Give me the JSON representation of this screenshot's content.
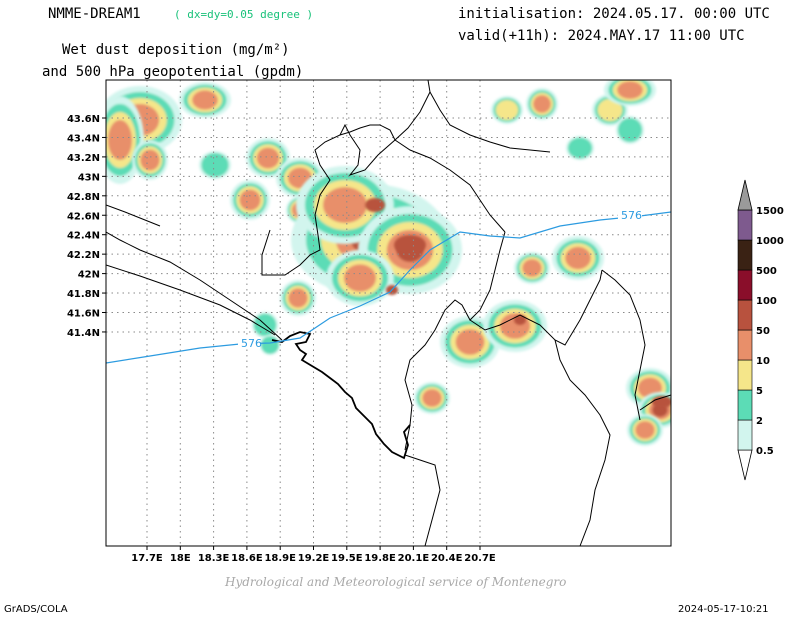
{
  "header": {
    "model": "NMME-DREAM1",
    "resolution": "( dx=dy=0.05 degree )",
    "initialisation": "initialisation: 2024.05.17. 00:00 UTC",
    "valid": "valid(+11h): 2024.MAY.17 11:00 UTC",
    "title_line1": "Wet dust deposition (mg/m²)",
    "title_line2": "and 500 hPa geopotential (gpdm)"
  },
  "map": {
    "lon_ticks": [
      "17.7E",
      "18E",
      "18.3E",
      "18.6E",
      "18.9E",
      "19.2E",
      "19.5E",
      "19.8E",
      "20.1E",
      "20.4E",
      "20.7E"
    ],
    "lat_ticks": [
      "43.6N",
      "43.4N",
      "43.2N",
      "43N",
      "42.8N",
      "42.6N",
      "42.4N",
      "42.2N",
      "42N",
      "41.8N",
      "41.6N",
      "41.4N"
    ],
    "contour_label": "576",
    "colorbar": {
      "levels": [
        "0.5",
        "2",
        "5",
        "10",
        "50",
        "100",
        "500",
        "1000",
        "1500"
      ],
      "colors": [
        "#d2f5ee",
        "#5cdcb6",
        "#f5e68a",
        "#e88f6a",
        "#b8523e",
        "#8a0e2a",
        "#3a2214",
        "#7e5a8e",
        "#9a9a9a"
      ]
    }
  },
  "footer": {
    "credit": "Hydrological and Meteorological service of Montenegro",
    "software": "GrADS/COLA",
    "timestamp": "2024-05-17-10:21"
  }
}
